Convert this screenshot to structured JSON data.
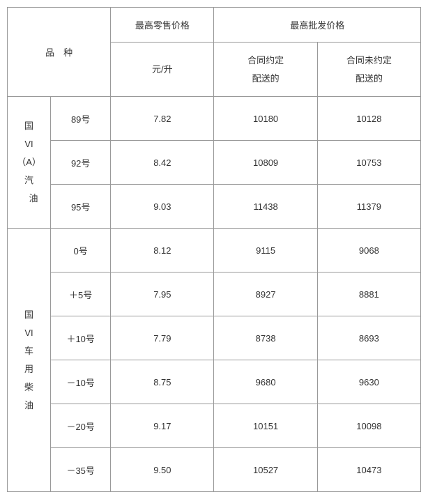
{
  "header": {
    "variety": "品　种",
    "retail": "最高零售价格",
    "wholesale": "最高批发价格",
    "unit": "元/升",
    "contract_delivery": "合同约定<br>配送的",
    "no_contract_delivery": "合同未约定<br>配送的"
  },
  "categories": [
    {
      "label": "国<br>VI<br>（A）<br>汽<br>　油",
      "rows": [
        {
          "grade": "89号",
          "retail": "7.82",
          "contract": "10180",
          "nocontract": "10128"
        },
        {
          "grade": "92号",
          "retail": "8.42",
          "contract": "10809",
          "nocontract": "10753"
        },
        {
          "grade": "95号",
          "retail": "9.03",
          "contract": "11438",
          "nocontract": "11379"
        }
      ]
    },
    {
      "label": "国<br>VI<br>车<br>用<br>柴<br>油",
      "rows": [
        {
          "grade": "0号",
          "retail": "8.12",
          "contract": "9115",
          "nocontract": "9068"
        },
        {
          "grade": "＋5号",
          "retail": "7.95",
          "contract": "8927",
          "nocontract": "8881"
        },
        {
          "grade": "＋10号",
          "retail": "7.79",
          "contract": "8738",
          "nocontract": "8693"
        },
        {
          "grade": "－10号",
          "retail": "8.75",
          "contract": "9680",
          "nocontract": "9630"
        },
        {
          "grade": "－20号",
          "retail": "9.17",
          "contract": "10151",
          "nocontract": "10098"
        },
        {
          "grade": "－35号",
          "retail": "9.50",
          "contract": "10527",
          "nocontract": "10473"
        }
      ]
    }
  ],
  "styles": {
    "border_color": "#999999",
    "text_color": "#333333",
    "background_color": "#ffffff",
    "font_size_pt": 10
  }
}
